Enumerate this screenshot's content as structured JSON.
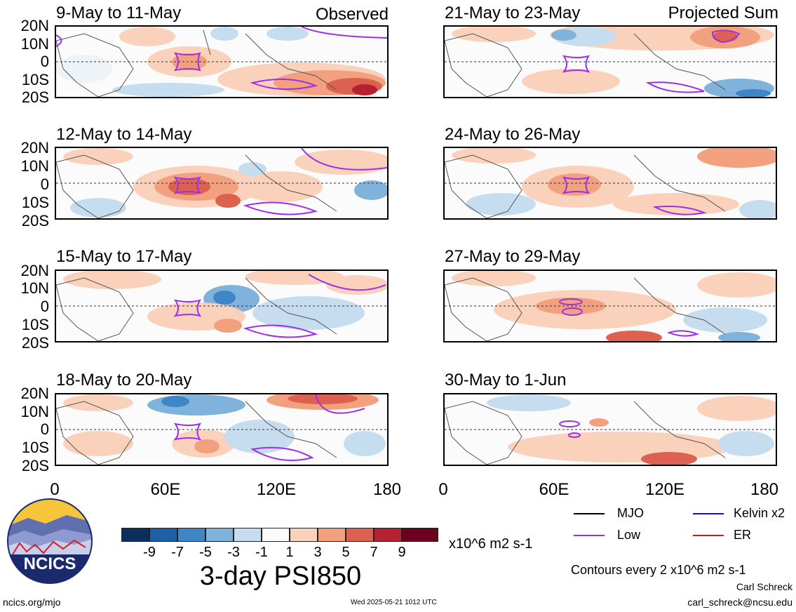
{
  "panels": [
    {
      "title": "9-May to 11-May",
      "corner": "Observed"
    },
    {
      "title": "12-May to 14-May",
      "corner": ""
    },
    {
      "title": "15-May to 17-May",
      "corner": ""
    },
    {
      "title": "18-May to 20-May",
      "corner": ""
    },
    {
      "title": "21-May to 23-May",
      "corner": "Projected Sum"
    },
    {
      "title": "24-May to 26-May",
      "corner": ""
    },
    {
      "title": "27-May to 29-May",
      "corner": ""
    },
    {
      "title": "30-May to 1-Jun",
      "corner": ""
    }
  ],
  "lat_labels": [
    "20N",
    "10N",
    "0",
    "10S",
    "20S"
  ],
  "lon_labels": [
    "0",
    "60E",
    "120E",
    "180"
  ],
  "colorbar": {
    "ticks": [
      "-9",
      "-7",
      "-5",
      "-3",
      "-1",
      "1",
      "3",
      "5",
      "7",
      "9"
    ],
    "colors": [
      "#0a2f5e",
      "#1f5fa6",
      "#3f86c6",
      "#7fb3dc",
      "#c6ddf0",
      "#fbfbfb",
      "#fad2bb",
      "#f2a07d",
      "#dd6150",
      "#b5212e",
      "#6a0220"
    ],
    "units": "x10^6 m2 s-1",
    "title": "3-day PSI850"
  },
  "legend": {
    "mjo": "MJO",
    "low": "Low",
    "kelvin": "Kelvin x2",
    "er": "ER",
    "mjo_color": "#000000",
    "low_color": "#9b30e8",
    "kelvin_color": "#1010e0",
    "er_color": "#e01010"
  },
  "footer": {
    "contours_note": "Contours every 2 x10^6 m2 s-1",
    "author": "Carl Schreck",
    "email": "carl_schreck@ncsu.edu",
    "url": "ncics.org/mjo",
    "timestamp": "Wed 2025-05-21 1012 UTC",
    "logo_text": "NCICS"
  }
}
